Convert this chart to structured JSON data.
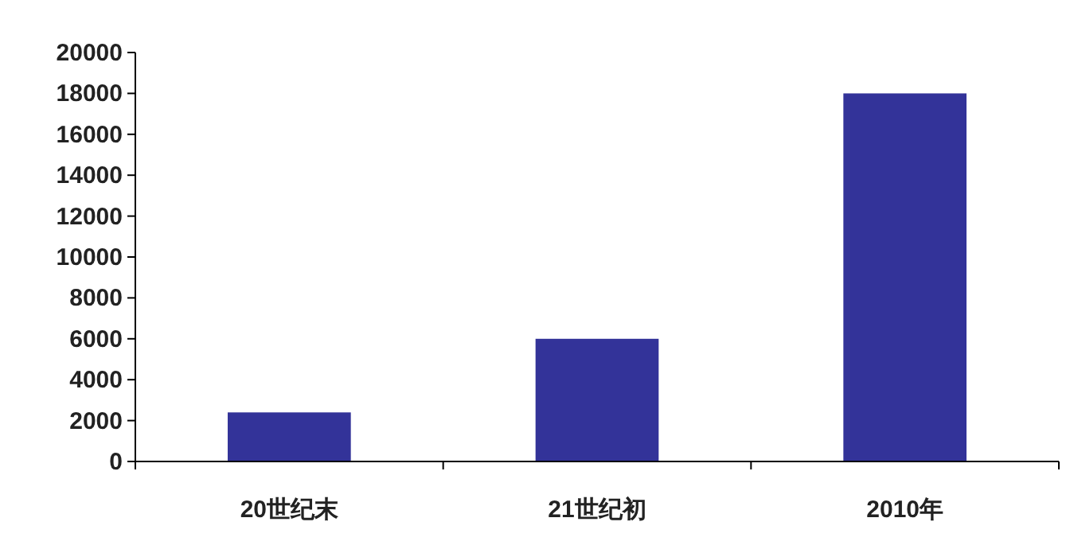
{
  "chart_data": {
    "type": "bar",
    "categories": [
      "20世纪末",
      "21世纪初",
      "2010年"
    ],
    "values": [
      2400,
      6000,
      18000
    ],
    "color": "#333399",
    "ylim": [
      0,
      20000
    ],
    "yticks": [
      0,
      2000,
      4000,
      6000,
      8000,
      10000,
      12000,
      14000,
      16000,
      18000,
      20000
    ],
    "grid": false
  }
}
